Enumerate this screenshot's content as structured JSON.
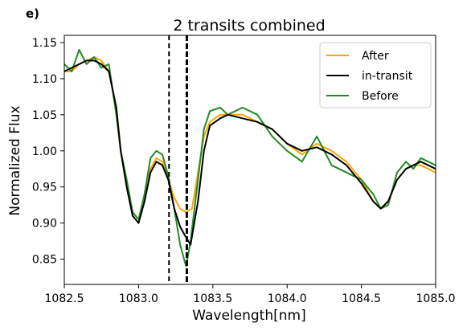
{
  "panel_label": "e)",
  "chart_data": {
    "type": "line",
    "title": "2 transits combined",
    "xlabel": "Wavelength[nm]",
    "ylabel": "Normalized Flux",
    "xlim": [
      1082.5,
      1085.0
    ],
    "ylim": [
      0.815,
      1.16
    ],
    "x_ticks": [
      1082.5,
      1083.0,
      1083.5,
      1084.0,
      1084.5,
      1085.0
    ],
    "x_tick_labels": [
      "1082.5",
      "1083.0",
      "1083.5",
      "1084.0",
      "1084.5",
      "1085.0"
    ],
    "y_ticks": [
      0.85,
      0.9,
      0.95,
      1.0,
      1.05,
      1.1,
      1.15
    ],
    "y_tick_labels": [
      "0.85",
      "0.90",
      "0.95",
      "1.00",
      "1.05",
      "1.10",
      "1.15"
    ],
    "grid": false,
    "legend_position": "top-right",
    "vlines": [
      {
        "x": 1083.205,
        "style": "dashed"
      },
      {
        "x": 1083.325,
        "style": "dashed-bold"
      }
    ],
    "series": [
      {
        "name": "After",
        "color": "#FFA500",
        "points": [
          [
            1082.5,
            1.11
          ],
          [
            1082.55,
            1.11
          ],
          [
            1082.6,
            1.12
          ],
          [
            1082.65,
            1.125
          ],
          [
            1082.7,
            1.13
          ],
          [
            1082.75,
            1.125
          ],
          [
            1082.8,
            1.11
          ],
          [
            1082.85,
            1.06
          ],
          [
            1082.88,
            1.0
          ],
          [
            1082.92,
            0.95
          ],
          [
            1082.96,
            0.91
          ],
          [
            1083.0,
            0.9
          ],
          [
            1083.04,
            0.93
          ],
          [
            1083.08,
            0.975
          ],
          [
            1083.12,
            0.99
          ],
          [
            1083.16,
            0.985
          ],
          [
            1083.2,
            0.96
          ],
          [
            1083.24,
            0.935
          ],
          [
            1083.28,
            0.92
          ],
          [
            1083.32,
            0.915
          ],
          [
            1083.36,
            0.92
          ],
          [
            1083.4,
            0.97
          ],
          [
            1083.44,
            1.02
          ],
          [
            1083.48,
            1.04
          ],
          [
            1083.55,
            1.05
          ],
          [
            1083.6,
            1.05
          ],
          [
            1083.7,
            1.05
          ],
          [
            1083.8,
            1.04
          ],
          [
            1083.9,
            1.03
          ],
          [
            1084.0,
            1.01
          ],
          [
            1084.1,
            0.995
          ],
          [
            1084.2,
            1.01
          ],
          [
            1084.3,
            1.0
          ],
          [
            1084.4,
            0.985
          ],
          [
            1084.5,
            0.96
          ],
          [
            1084.58,
            0.93
          ],
          [
            1084.63,
            0.92
          ],
          [
            1084.68,
            0.93
          ],
          [
            1084.74,
            0.96
          ],
          [
            1084.8,
            0.975
          ],
          [
            1084.85,
            0.98
          ],
          [
            1084.9,
            0.98
          ],
          [
            1084.95,
            0.975
          ],
          [
            1085.0,
            0.97
          ]
        ]
      },
      {
        "name": "in-transit",
        "color": "#000000",
        "points": [
          [
            1082.5,
            1.11
          ],
          [
            1082.55,
            1.115
          ],
          [
            1082.6,
            1.12
          ],
          [
            1082.65,
            1.125
          ],
          [
            1082.7,
            1.125
          ],
          [
            1082.75,
            1.12
          ],
          [
            1082.8,
            1.11
          ],
          [
            1082.85,
            1.06
          ],
          [
            1082.88,
            1.0
          ],
          [
            1082.92,
            0.95
          ],
          [
            1082.96,
            0.91
          ],
          [
            1083.0,
            0.9
          ],
          [
            1083.04,
            0.93
          ],
          [
            1083.08,
            0.97
          ],
          [
            1083.12,
            0.985
          ],
          [
            1083.16,
            0.98
          ],
          [
            1083.2,
            0.96
          ],
          [
            1083.24,
            0.92
          ],
          [
            1083.28,
            0.895
          ],
          [
            1083.32,
            0.88
          ],
          [
            1083.35,
            0.87
          ],
          [
            1083.4,
            0.93
          ],
          [
            1083.44,
            1.0
          ],
          [
            1083.48,
            1.035
          ],
          [
            1083.55,
            1.045
          ],
          [
            1083.6,
            1.05
          ],
          [
            1083.7,
            1.045
          ],
          [
            1083.8,
            1.04
          ],
          [
            1083.9,
            1.03
          ],
          [
            1084.0,
            1.01
          ],
          [
            1084.1,
            1.0
          ],
          [
            1084.2,
            1.005
          ],
          [
            1084.3,
            0.995
          ],
          [
            1084.4,
            0.98
          ],
          [
            1084.5,
            0.955
          ],
          [
            1084.58,
            0.93
          ],
          [
            1084.63,
            0.92
          ],
          [
            1084.68,
            0.93
          ],
          [
            1084.74,
            0.96
          ],
          [
            1084.8,
            0.975
          ],
          [
            1084.85,
            0.98
          ],
          [
            1084.9,
            0.985
          ],
          [
            1084.95,
            0.98
          ],
          [
            1085.0,
            0.975
          ]
        ]
      },
      {
        "name": "Before",
        "color": "#228B22",
        "points": [
          [
            1082.5,
            1.12
          ],
          [
            1082.55,
            1.11
          ],
          [
            1082.6,
            1.14
          ],
          [
            1082.65,
            1.12
          ],
          [
            1082.7,
            1.13
          ],
          [
            1082.75,
            1.115
          ],
          [
            1082.8,
            1.12
          ],
          [
            1082.85,
            1.05
          ],
          [
            1082.88,
            1.0
          ],
          [
            1082.92,
            0.96
          ],
          [
            1082.96,
            0.915
          ],
          [
            1083.0,
            0.905
          ],
          [
            1083.04,
            0.94
          ],
          [
            1083.08,
            0.99
          ],
          [
            1083.12,
            1.0
          ],
          [
            1083.16,
            0.995
          ],
          [
            1083.2,
            0.965
          ],
          [
            1083.24,
            0.92
          ],
          [
            1083.28,
            0.87
          ],
          [
            1083.32,
            0.84
          ],
          [
            1083.35,
            0.875
          ],
          [
            1083.4,
            0.96
          ],
          [
            1083.44,
            1.03
          ],
          [
            1083.48,
            1.055
          ],
          [
            1083.55,
            1.06
          ],
          [
            1083.6,
            1.05
          ],
          [
            1083.7,
            1.06
          ],
          [
            1083.8,
            1.05
          ],
          [
            1083.9,
            1.02
          ],
          [
            1084.0,
            1.0
          ],
          [
            1084.1,
            0.985
          ],
          [
            1084.2,
            1.02
          ],
          [
            1084.3,
            0.98
          ],
          [
            1084.4,
            0.97
          ],
          [
            1084.5,
            0.96
          ],
          [
            1084.58,
            0.94
          ],
          [
            1084.63,
            0.92
          ],
          [
            1084.68,
            0.925
          ],
          [
            1084.74,
            0.97
          ],
          [
            1084.8,
            0.985
          ],
          [
            1084.85,
            0.975
          ],
          [
            1084.9,
            0.99
          ],
          [
            1084.95,
            0.985
          ],
          [
            1085.0,
            0.98
          ]
        ]
      }
    ]
  }
}
